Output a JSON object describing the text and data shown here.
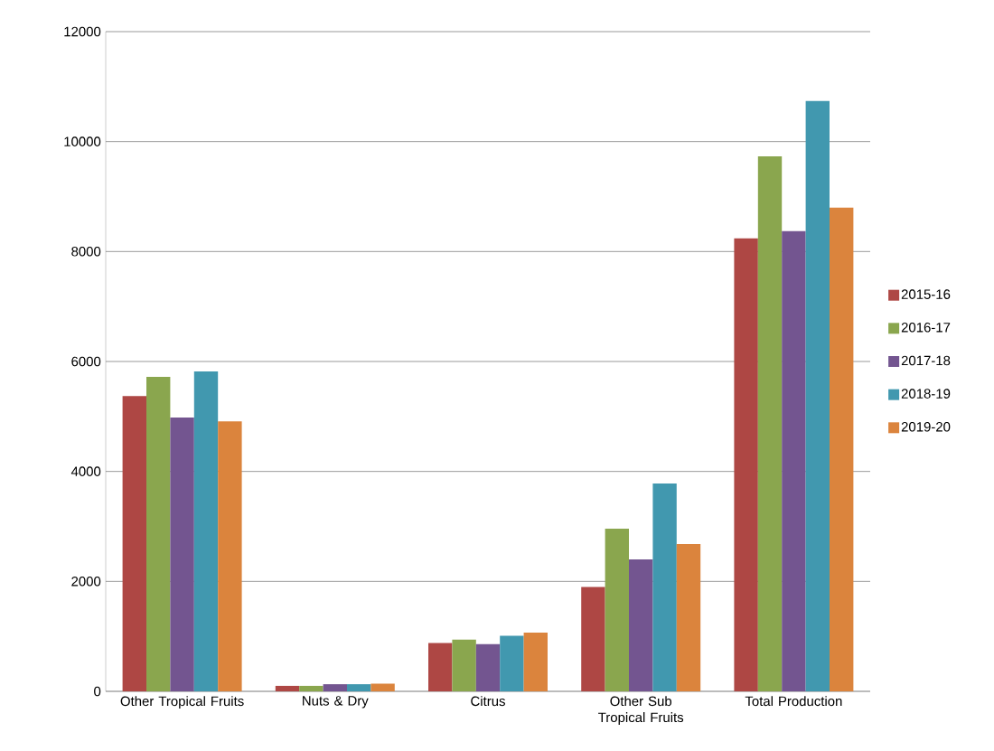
{
  "chart_data": {
    "type": "bar",
    "categories": [
      "Other Tropical Fruits",
      "Nuts & Dry",
      "Citrus",
      "Other Sub Tropical Fruits",
      "Total Production"
    ],
    "series": [
      {
        "name": "2015-16",
        "color": "#ae4744",
        "values": [
          5370,
          100,
          880,
          1900,
          8240
        ]
      },
      {
        "name": "2016-17",
        "color": "#8aa64e",
        "values": [
          5720,
          100,
          940,
          2960,
          9730
        ]
      },
      {
        "name": "2017-18",
        "color": "#735590",
        "values": [
          4980,
          130,
          860,
          2400,
          8370
        ]
      },
      {
        "name": "2018-19",
        "color": "#4198af",
        "values": [
          5820,
          130,
          1010,
          3780,
          10740
        ]
      },
      {
        "name": "2019-20",
        "color": "#db843d",
        "values": [
          4910,
          140,
          1070,
          2680,
          8800
        ]
      }
    ],
    "ylim": [
      0,
      12000
    ],
    "yticks": [
      0,
      2000,
      4000,
      6000,
      8000,
      10000,
      12000
    ],
    "grid": "y",
    "legend": "right"
  }
}
